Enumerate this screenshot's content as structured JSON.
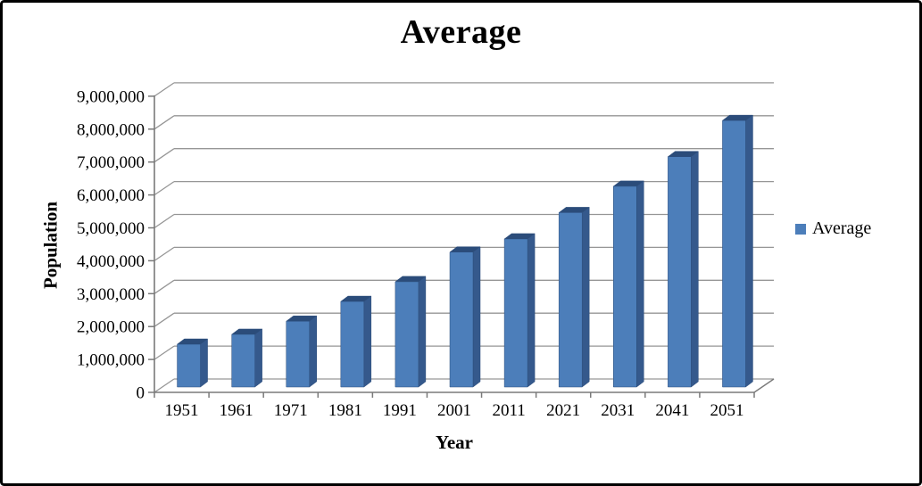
{
  "chart_data": {
    "type": "bar",
    "style": "3d-column",
    "title": "Average",
    "xlabel": "Year",
    "ylabel": "Population",
    "categories": [
      "1951",
      "1961",
      "1971",
      "1981",
      "1991",
      "2001",
      "2011",
      "2021",
      "2031",
      "2041",
      "2051"
    ],
    "series": [
      {
        "name": "Average",
        "values": [
          1300000,
          1600000,
          2000000,
          2600000,
          3200000,
          4100000,
          4500000,
          5300000,
          6100000,
          7000000,
          8100000
        ]
      }
    ],
    "ylim": [
      0,
      9000000
    ],
    "ytick_interval": 1000000,
    "ytick_labels": [
      "0",
      "1,000,000",
      "2,000,000",
      "3,000,000",
      "4,000,000",
      "5,000,000",
      "6,000,000",
      "7,000,000",
      "8,000,000",
      "9,000,000"
    ],
    "grid": true,
    "legend": {
      "label": "Average",
      "position": "right"
    },
    "colors": {
      "bar_front": "#4C7EBA",
      "bar_side": "#35598C",
      "bar_top": "#2B4C7A",
      "gridline": "#969696",
      "axis": "#7A7A7A",
      "text": "#000000",
      "background": "#FFFFFF",
      "border": "#000000"
    }
  }
}
